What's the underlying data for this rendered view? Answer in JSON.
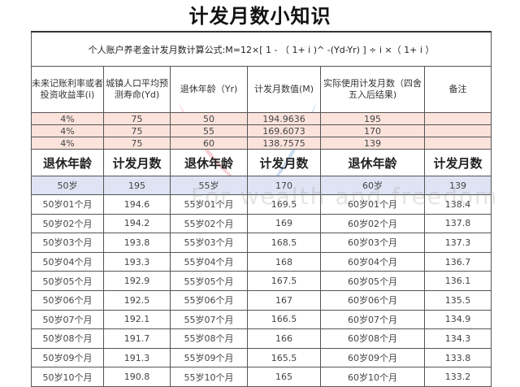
{
  "title": "计发月数小知识",
  "formula": "个人账户养老金计发月数计算公式:M=12×[ 1 - （ 1+ i )^ -(Yd-Yr) ] ÷ i ×（ 1+ i ）",
  "headers": [
    "未来记账利率或者投资收益率(i)",
    "城镇人口平均预测寿命(Yd)",
    "退休年龄（Yr)",
    "计发月数值(M)",
    "实际使用计发月数（四舍五入后结果)",
    "备注"
  ],
  "calc_rows": [
    [
      "4%",
      "75",
      "50",
      "194.9636",
      "195",
      ""
    ],
    [
      "4%",
      "75",
      "55",
      "169.6073",
      "170",
      ""
    ],
    [
      "4%",
      "75",
      "60",
      "138.7575",
      "139",
      ""
    ]
  ],
  "headers2": [
    "退休年龄",
    "计发月数",
    "退休年龄",
    "计发月数",
    "退休年龄",
    "计发月数"
  ],
  "months_rows": [
    [
      "50岁",
      "195",
      "55岁",
      "170",
      "60岁",
      "139"
    ],
    [
      "50岁01个月",
      "194.6",
      "55岁01个月",
      "169.5",
      "60岁01个月",
      "138.4"
    ],
    [
      "50岁02个月",
      "194.2",
      "55岁02个月",
      "169",
      "60岁02个月",
      "137.8"
    ],
    [
      "50岁03个月",
      "193.8",
      "55岁03个月",
      "168.5",
      "60岁03个月",
      "137.3"
    ],
    [
      "50岁04个月",
      "193.3",
      "55岁04个月",
      "168",
      "60岁04个月",
      "136.7"
    ],
    [
      "50岁05个月",
      "192.9",
      "55岁05个月",
      "167.5",
      "60岁05个月",
      "136.1"
    ],
    [
      "50岁06个月",
      "192.5",
      "55岁06个月",
      "167",
      "60岁06个月",
      "135.5"
    ],
    [
      "50岁07个月",
      "192.1",
      "55岁07个月",
      "166.5",
      "60岁07个月",
      "134.9"
    ],
    [
      "50岁08个月",
      "191.7",
      "55岁08个月",
      "166",
      "60岁08个月",
      "134.3"
    ],
    [
      "50岁09个月",
      "191.3",
      "55岁09个月",
      "165.5",
      "60岁09个月",
      "133.8"
    ],
    [
      "50岁10个月",
      "190.8",
      "55岁10个月",
      "165",
      "60岁10个月",
      "133.2"
    ]
  ],
  "watermark": "For wealth and freedom",
  "colors": {
    "pink_row": "#fbe3dc",
    "blue_row": "#dfe3f3"
  }
}
